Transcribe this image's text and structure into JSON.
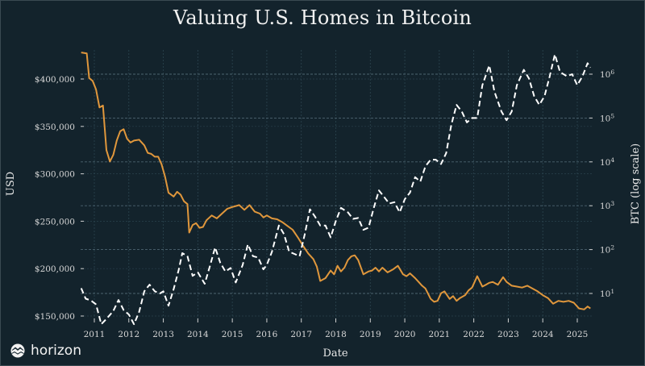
{
  "chart_data": {
    "type": "line",
    "title": "Valuing U.S. Homes in Bitcoin",
    "xlabel": "Date",
    "ylabel_left": "USD",
    "ylabel_right": "BTC (log scale)",
    "xlim": [
      2010.6,
      2025.4
    ],
    "ylim_left": [
      145000,
      427000
    ],
    "ylim_right_log10": [
      0.4,
      6.1
    ],
    "x_ticks": [
      "2011",
      "2012",
      "2013",
      "2014",
      "2015",
      "2016",
      "2017",
      "2018",
      "2019",
      "2020",
      "2021",
      "2022",
      "2023",
      "2024",
      "2025"
    ],
    "y_ticks_left": [
      "$150,000",
      "$200,000",
      "$250,000",
      "$300,000",
      "$350,000",
      "$400,000"
    ],
    "y_ticks_right": [
      {
        "base": "10",
        "exp": "1"
      },
      {
        "base": "10",
        "exp": "2"
      },
      {
        "base": "10",
        "exp": "3"
      },
      {
        "base": "10",
        "exp": "4"
      },
      {
        "base": "10",
        "exp": "5"
      },
      {
        "base": "10",
        "exp": "6"
      }
    ],
    "grid": true,
    "series": [
      {
        "name": "USD",
        "axis": "left",
        "style": "solid",
        "color": "#e0973c",
        "x": [
          2010.62,
          2010.78,
          2010.85,
          2010.95,
          2011.05,
          2011.15,
          2011.25,
          2011.35,
          2011.45,
          2011.55,
          2011.65,
          2011.75,
          2011.85,
          2011.95,
          2012.05,
          2012.15,
          2012.3,
          2012.45,
          2012.55,
          2012.65,
          2012.75,
          2012.85,
          2012.95,
          2013.05,
          2013.15,
          2013.3,
          2013.4,
          2013.5,
          2013.6,
          2013.7,
          2013.75,
          2013.85,
          2013.95,
          2014.05,
          2014.15,
          2014.25,
          2014.4,
          2014.55,
          2014.7,
          2014.85,
          2015.0,
          2015.1,
          2015.2,
          2015.35,
          2015.5,
          2015.65,
          2015.8,
          2015.9,
          2016.0,
          2016.15,
          2016.3,
          2016.45,
          2016.6,
          2016.75,
          2016.9,
          2017.05,
          2017.2,
          2017.35,
          2017.45,
          2017.55,
          2017.7,
          2017.85,
          2017.95,
          2018.05,
          2018.15,
          2018.25,
          2018.35,
          2018.45,
          2018.55,
          2018.65,
          2018.8,
          2018.95,
          2019.05,
          2019.15,
          2019.25,
          2019.35,
          2019.5,
          2019.65,
          2019.8,
          2019.95,
          2020.05,
          2020.15,
          2020.3,
          2020.4,
          2020.5,
          2020.6,
          2020.75,
          2020.85,
          2020.95,
          2021.05,
          2021.15,
          2021.3,
          2021.4,
          2021.5,
          2021.6,
          2021.75,
          2021.85,
          2021.95,
          2022.1,
          2022.25,
          2022.35,
          2022.45,
          2022.55,
          2022.7,
          2022.85,
          2022.95,
          2023.1,
          2023.25,
          2023.4,
          2023.55,
          2023.7,
          2023.85,
          2024.0,
          2024.15,
          2024.3,
          2024.45,
          2024.6,
          2024.75,
          2024.9,
          2025.05,
          2025.2,
          2025.3,
          2025.38
        ],
        "y": [
          428000,
          427000,
          401000,
          398000,
          389000,
          370000,
          372000,
          325000,
          313000,
          320000,
          335000,
          345000,
          347000,
          337000,
          333000,
          335000,
          336000,
          330000,
          322000,
          321000,
          318000,
          318000,
          310000,
          297000,
          280000,
          276000,
          281000,
          278000,
          271000,
          268000,
          238000,
          246000,
          248000,
          243000,
          244000,
          251000,
          256000,
          253000,
          258000,
          263000,
          265000,
          266000,
          267000,
          262000,
          267000,
          260000,
          258000,
          254000,
          256000,
          253000,
          252000,
          249000,
          245000,
          241000,
          233000,
          224000,
          216000,
          210000,
          202000,
          187000,
          190000,
          198000,
          194000,
          203000,
          197000,
          201000,
          209000,
          213000,
          214000,
          209000,
          194000,
          197000,
          198000,
          201000,
          197000,
          201000,
          196000,
          199000,
          203000,
          194000,
          192000,
          195000,
          190000,
          186000,
          182000,
          179000,
          168000,
          165000,
          166000,
          174000,
          176000,
          168000,
          171000,
          166000,
          169000,
          172000,
          177000,
          180000,
          192000,
          181000,
          183000,
          185000,
          186000,
          183000,
          191000,
          186000,
          182000,
          181000,
          180000,
          182000,
          179000,
          176000,
          172000,
          169000,
          163000,
          166000,
          165000,
          166000,
          164000,
          158000,
          157000,
          160000,
          158000
        ]
      },
      {
        "name": "BTC",
        "axis": "right",
        "style": "dashed",
        "color": "#ffffff",
        "x": [
          2010.62,
          2010.75,
          2010.9,
          2011.05,
          2011.2,
          2011.35,
          2011.55,
          2011.7,
          2011.85,
          2012.0,
          2012.15,
          2012.3,
          2012.45,
          2012.6,
          2012.75,
          2012.9,
          2013.0,
          2013.15,
          2013.3,
          2013.45,
          2013.55,
          2013.7,
          2013.85,
          2014.0,
          2014.2,
          2014.35,
          2014.5,
          2014.65,
          2014.8,
          2014.95,
          2015.1,
          2015.3,
          2015.45,
          2015.6,
          2015.75,
          2015.9,
          2016.0,
          2016.15,
          2016.35,
          2016.5,
          2016.65,
          2016.8,
          2016.95,
          2017.1,
          2017.25,
          2017.4,
          2017.55,
          2017.7,
          2017.85,
          2018.0,
          2018.15,
          2018.35,
          2018.5,
          2018.65,
          2018.8,
          2018.95,
          2019.1,
          2019.25,
          2019.4,
          2019.55,
          2019.7,
          2019.85,
          2020.0,
          2020.15,
          2020.3,
          2020.45,
          2020.6,
          2020.75,
          2020.9,
          2021.05,
          2021.2,
          2021.35,
          2021.5,
          2021.65,
          2021.8,
          2021.95,
          2022.1,
          2022.25,
          2022.45,
          2022.6,
          2022.8,
          2022.95,
          2023.1,
          2023.25,
          2023.45,
          2023.6,
          2023.75,
          2023.9,
          2024.05,
          2024.2,
          2024.35,
          2024.5,
          2024.7,
          2024.85,
          2025.0,
          2025.15,
          2025.3,
          2025.38
        ],
        "y_log10": [
          1.12,
          0.88,
          0.84,
          0.75,
          0.3,
          0.42,
          0.6,
          0.85,
          0.62,
          0.52,
          0.3,
          0.58,
          1.05,
          1.2,
          1.05,
          1.0,
          1.05,
          0.72,
          1.1,
          1.55,
          1.92,
          1.85,
          1.4,
          1.48,
          1.22,
          1.62,
          2.05,
          1.7,
          1.5,
          1.58,
          1.25,
          1.65,
          2.12,
          1.85,
          1.82,
          1.55,
          1.65,
          1.95,
          2.55,
          2.35,
          1.95,
          1.9,
          1.85,
          2.35,
          2.92,
          2.75,
          2.55,
          2.55,
          2.28,
          2.65,
          2.95,
          2.85,
          2.7,
          2.72,
          2.45,
          2.5,
          2.95,
          3.35,
          3.2,
          3.05,
          3.08,
          2.85,
          3.15,
          3.3,
          3.65,
          3.55,
          3.9,
          4.05,
          4.05,
          3.95,
          4.2,
          4.85,
          5.3,
          5.15,
          4.9,
          5.0,
          5.0,
          5.75,
          6.2,
          5.6,
          5.15,
          4.95,
          5.15,
          5.75,
          6.1,
          5.9,
          5.5,
          5.3,
          5.5,
          5.95,
          6.45,
          6.05,
          5.95,
          6.0,
          5.75,
          5.95,
          6.25,
          6.15
        ]
      }
    ]
  },
  "branding": {
    "logo_icon": "mountain-logo-icon",
    "logo_text": "horizon"
  }
}
